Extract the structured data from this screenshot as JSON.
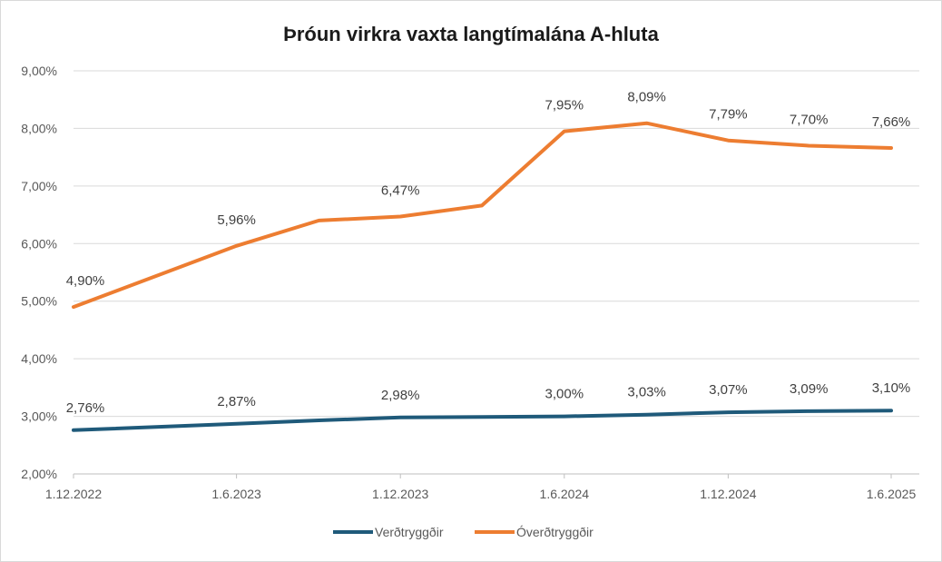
{
  "chart_data": {
    "type": "line",
    "title": "Þróun virkra vaxta langtímalána A-hluta",
    "x_tick_labels": [
      "1.12.2022",
      "1.6.2023",
      "1.12.2023",
      "1.6.2024",
      "1.12.2024",
      "1.6.2025"
    ],
    "y_tick_labels": [
      "2,00%",
      "3,00%",
      "4,00%",
      "5,00%",
      "6,00%",
      "7,00%",
      "8,00%",
      "9,00%"
    ],
    "ylim": [
      2,
      9
    ],
    "grid": true,
    "legend_position": "bottom",
    "x": [
      "2022-12-01",
      "2023-06-01",
      "2023-09-01",
      "2023-12-01",
      "2024-03-01",
      "2024-06-01",
      "2024-09-01",
      "2024-12-01",
      "2025-03-01",
      "2025-06-01"
    ],
    "series": [
      {
        "name": "Verðtryggðir",
        "color": "#1f5a7a",
        "values": [
          2.76,
          2.87,
          2.93,
          2.98,
          2.99,
          3.0,
          3.03,
          3.07,
          3.09,
          3.1
        ],
        "labels": [
          "2,76%",
          "2,87%",
          "",
          "2,98%",
          "",
          "3,00%",
          "3,03%",
          "3,07%",
          "3,09%",
          "3,10%"
        ]
      },
      {
        "name": "Óverðtryggðir",
        "color": "#ed7d31",
        "values": [
          4.9,
          5.96,
          6.4,
          6.47,
          6.66,
          7.95,
          8.09,
          7.79,
          7.7,
          7.66
        ],
        "labels": [
          "4,90%",
          "5,96%",
          "",
          "6,47%",
          "",
          "7,95%",
          "8,09%",
          "7,79%",
          "7,70%",
          "7,66%"
        ]
      }
    ]
  }
}
